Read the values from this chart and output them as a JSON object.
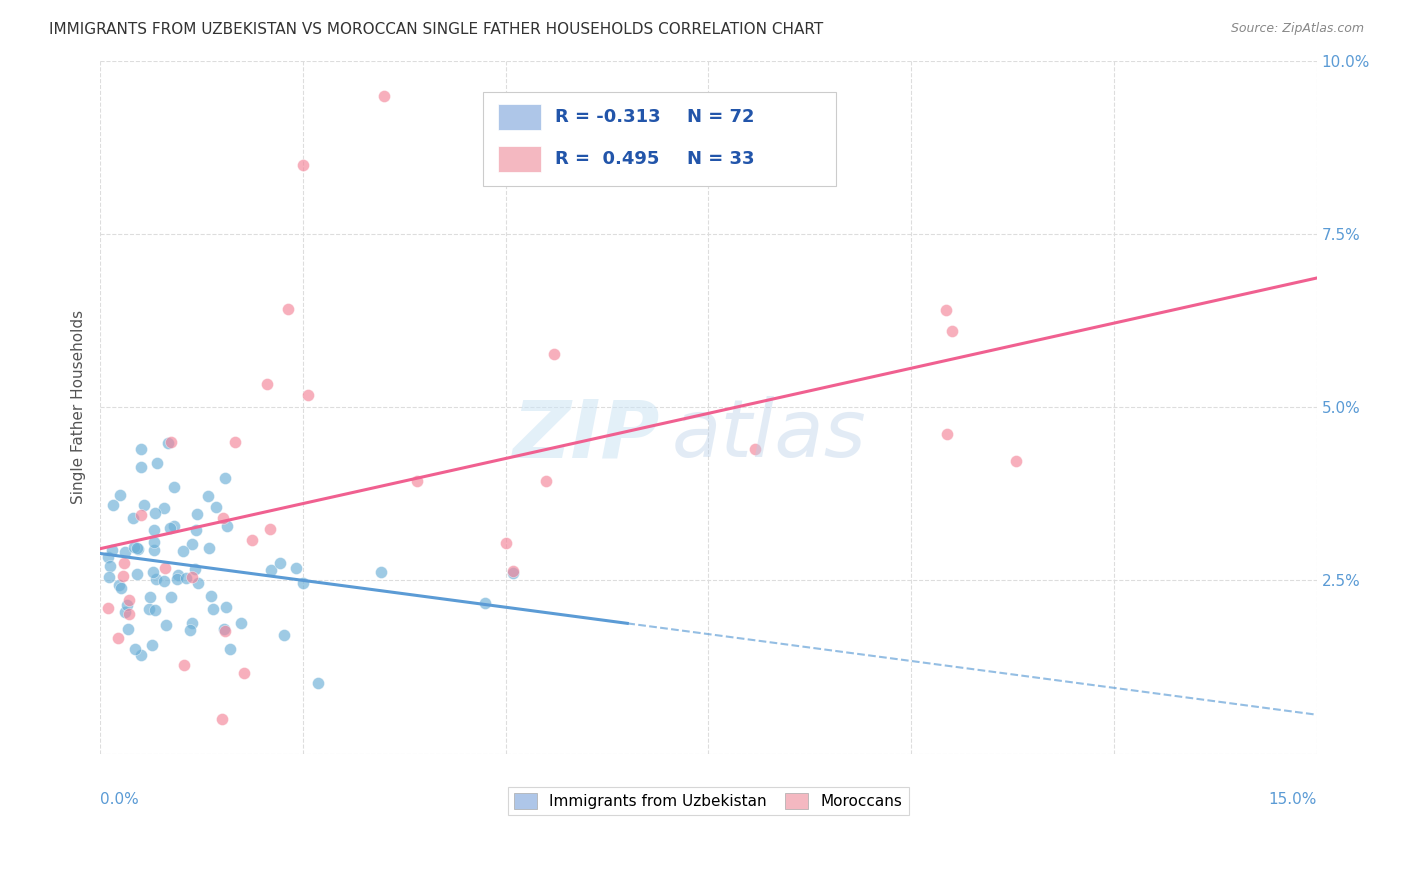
{
  "title": "IMMIGRANTS FROM UZBEKISTAN VS MOROCCAN SINGLE FATHER HOUSEHOLDS CORRELATION CHART",
  "source": "Source: ZipAtlas.com",
  "ylabel": "Single Father Households",
  "x_min": 0.0,
  "x_max": 0.15,
  "y_min": 0.0,
  "y_max": 0.1,
  "legend1_label_r": "R = -0.313",
  "legend1_label_n": "N = 72",
  "legend2_label_r": "R =  0.495",
  "legend2_label_n": "N = 33",
  "legend1_color": "#aec6e8",
  "legend2_color": "#f4b8c1",
  "series1_color": "#6aaed6",
  "series2_color": "#f48499",
  "trendline1_color": "#5b9bd5",
  "trendline2_color": "#f06090",
  "background_color": "#ffffff",
  "grid_color": "#dddddd",
  "title_color": "#333333",
  "axis_color": "#5b9bd5",
  "series1_N": 72,
  "series2_N": 33
}
